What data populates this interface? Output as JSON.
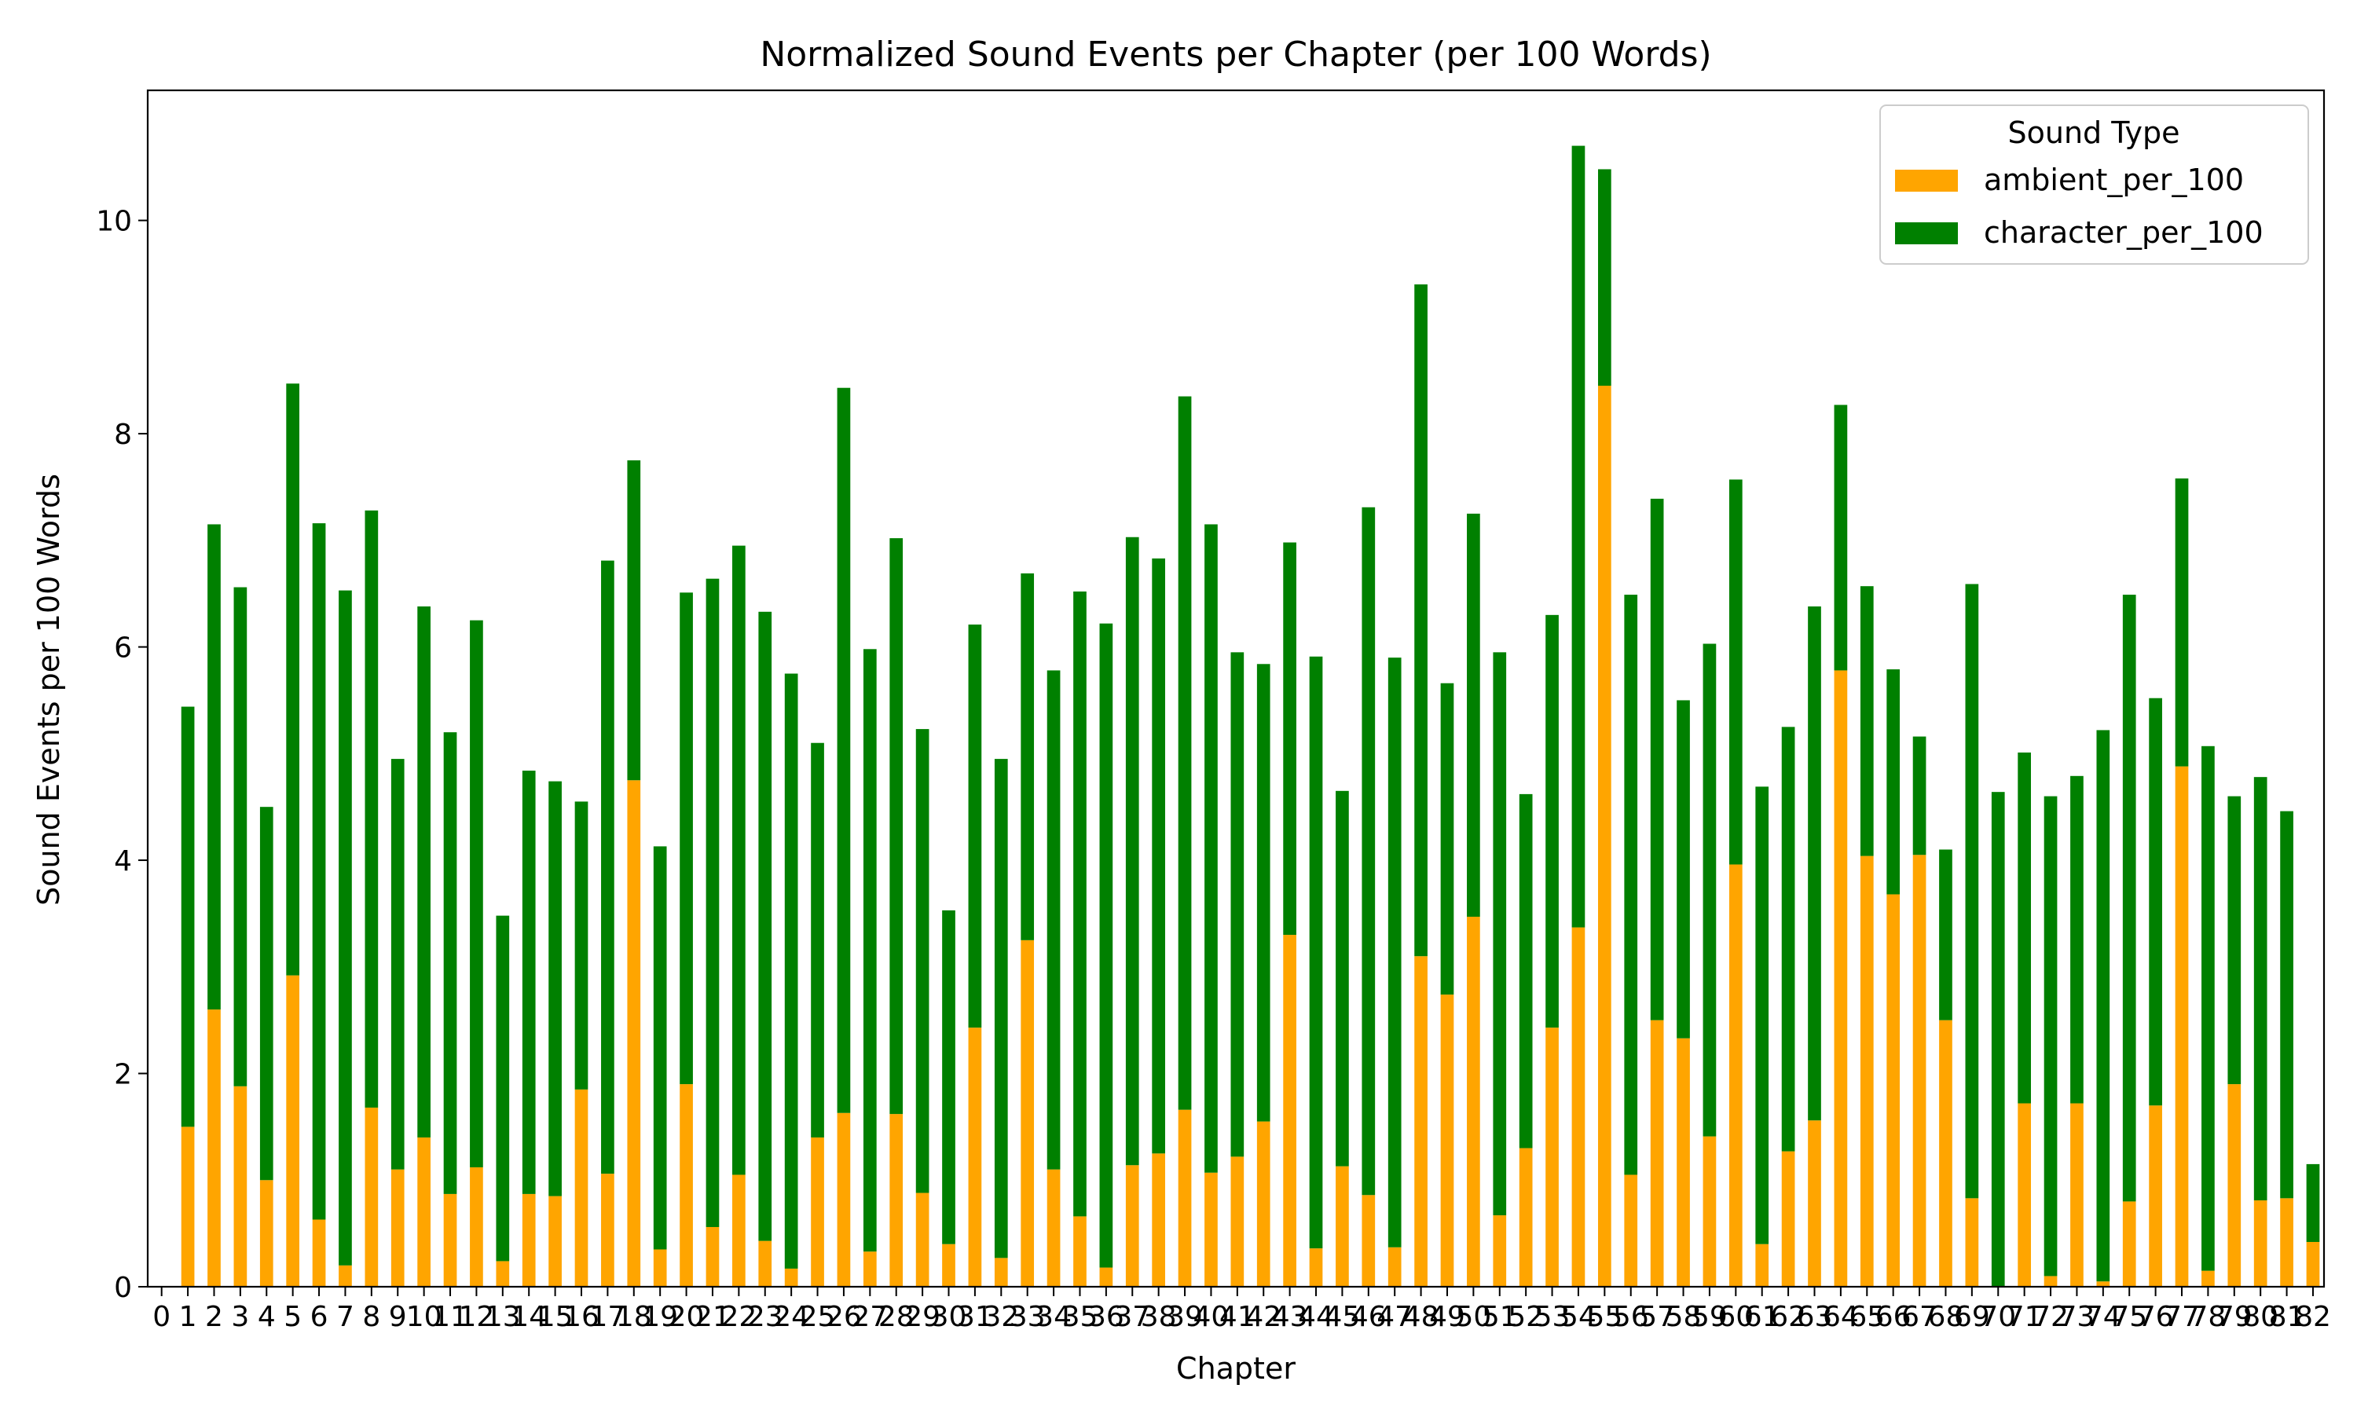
{
  "chart_data": {
    "type": "bar",
    "stacked": true,
    "title": "Normalized Sound Events per Chapter (per 100 Words)",
    "xlabel": "Chapter",
    "ylabel": "Sound Events per 100 Words",
    "ylim": [
      0,
      11.22
    ],
    "yticks": [
      0,
      2,
      4,
      6,
      8,
      10
    ],
    "grid": false,
    "legend": {
      "title": "Sound Type",
      "placement": "top-right"
    },
    "categories": [
      "0",
      "1",
      "2",
      "3",
      "4",
      "5",
      "6",
      "7",
      "8",
      "9",
      "10",
      "11",
      "12",
      "13",
      "14",
      "15",
      "16",
      "17",
      "18",
      "19",
      "20",
      "21",
      "22",
      "23",
      "24",
      "25",
      "26",
      "27",
      "28",
      "29",
      "30",
      "31",
      "32",
      "33",
      "34",
      "35",
      "36",
      "37",
      "38",
      "39",
      "40",
      "41",
      "42",
      "43",
      "44",
      "45",
      "46",
      "47",
      "48",
      "49",
      "50",
      "51",
      "52",
      "53",
      "54",
      "55",
      "56",
      "57",
      "58",
      "59",
      "60",
      "61",
      "62",
      "63",
      "64",
      "65",
      "66",
      "67",
      "68",
      "69",
      "70",
      "71",
      "72",
      "73",
      "74",
      "75",
      "76",
      "77",
      "78",
      "79",
      "80",
      "81",
      "82"
    ],
    "series": [
      {
        "name": "ambient_per_100",
        "color": "#FFA500",
        "values": [
          0,
          1.5,
          2.6,
          1.88,
          1.0,
          2.92,
          0.63,
          0.2,
          1.68,
          1.1,
          1.4,
          0.87,
          1.12,
          0.24,
          0.87,
          0.85,
          1.85,
          1.06,
          4.75,
          0.35,
          1.9,
          0.56,
          1.05,
          0.43,
          0.17,
          1.4,
          1.63,
          0.33,
          1.62,
          0.88,
          0.4,
          2.43,
          0.27,
          3.25,
          1.1,
          0.66,
          0.18,
          1.14,
          1.25,
          1.66,
          1.07,
          1.22,
          1.55,
          3.3,
          0.36,
          1.13,
          0.86,
          0.37,
          3.1,
          2.74,
          3.47,
          0.67,
          1.3,
          2.43,
          3.37,
          8.45,
          1.05,
          2.5,
          2.33,
          1.41,
          3.96,
          0.4,
          1.27,
          1.56,
          5.78,
          4.04,
          3.68,
          4.05,
          2.5,
          0.83,
          0,
          1.72,
          0.1,
          1.72,
          0.05,
          0.8,
          1.7,
          4.88,
          0.15,
          1.9,
          0.81,
          0.83,
          0.42
        ]
      },
      {
        "name": "character_per_100",
        "color": "#008000",
        "values": [
          0,
          3.94,
          4.55,
          4.68,
          3.5,
          5.55,
          6.53,
          6.33,
          5.6,
          3.85,
          4.98,
          4.33,
          5.13,
          3.24,
          3.97,
          3.89,
          2.7,
          5.75,
          3.0,
          3.78,
          4.61,
          6.08,
          5.9,
          5.9,
          5.58,
          3.7,
          6.8,
          5.65,
          5.4,
          4.35,
          3.13,
          3.78,
          4.68,
          3.44,
          4.68,
          5.86,
          6.04,
          5.89,
          5.58,
          6.69,
          6.08,
          4.73,
          4.29,
          3.68,
          5.55,
          3.52,
          6.45,
          5.53,
          6.3,
          2.92,
          3.78,
          5.28,
          3.32,
          3.87,
          7.33,
          2.03,
          5.44,
          4.89,
          3.17,
          4.62,
          3.61,
          4.29,
          3.98,
          4.82,
          2.49,
          2.53,
          2.11,
          1.11,
          1.6,
          5.76,
          4.64,
          3.29,
          4.5,
          3.07,
          5.17,
          5.69,
          3.82,
          2.7,
          4.92,
          2.7,
          3.97,
          3.63,
          0.73
        ]
      }
    ]
  }
}
